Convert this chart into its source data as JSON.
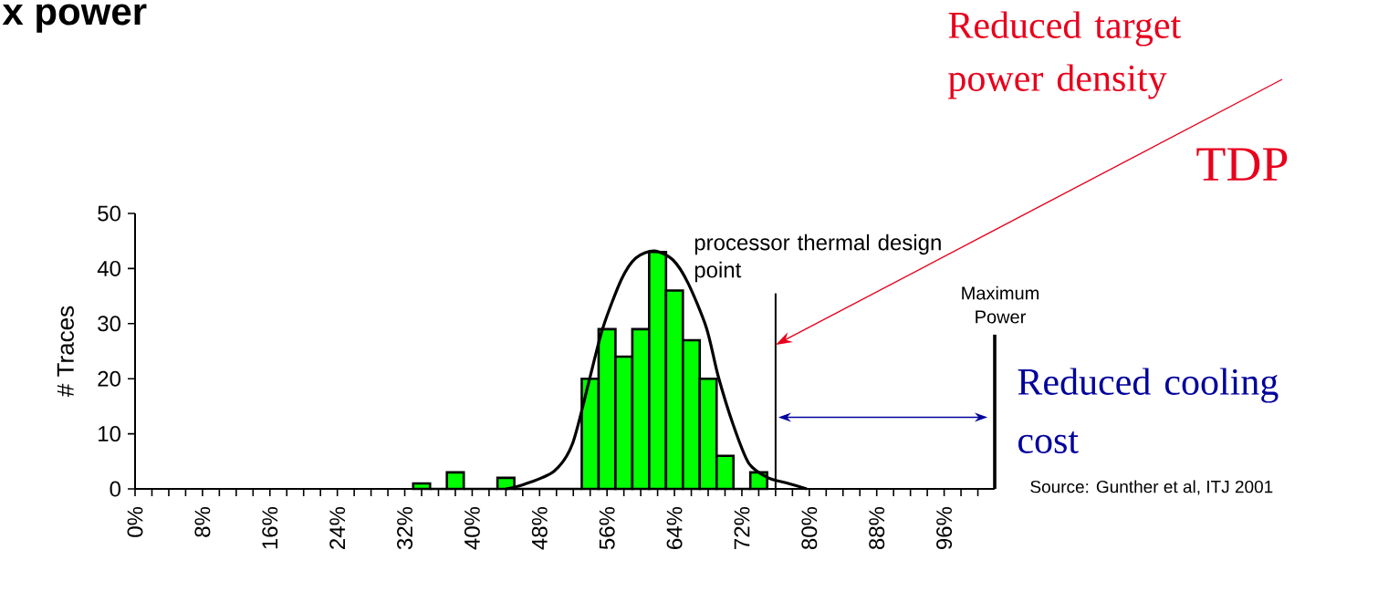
{
  "chart_data": {
    "type": "histogram",
    "title": "x power",
    "ylabel": "# Traces",
    "bins": [
      33,
      35,
      37,
      39,
      41,
      43,
      45,
      47,
      49,
      51,
      53,
      55,
      57,
      59,
      61,
      63,
      65,
      67,
      69,
      71,
      73,
      75
    ],
    "series": [
      {
        "type": "histogram",
        "color": "#00ff00",
        "values": [
          1,
          0,
          3,
          0,
          0,
          2,
          0,
          0,
          0,
          0,
          20,
          29,
          24,
          29,
          43,
          36,
          27,
          20,
          6,
          0,
          3
        ]
      },
      {
        "type": "line",
        "color": "#000000",
        "x": [
          44,
          46.1,
          49.7,
          51.9,
          54,
          55.5,
          57.7,
          59.4,
          61.6,
          63.8,
          65.6,
          67.8,
          69.2,
          71,
          72.8,
          75,
          77.5,
          79.7
        ],
        "values": [
          0,
          0.8,
          3.2,
          8.2,
          20.4,
          29.2,
          38,
          41.9,
          43.2,
          41.6,
          37.4,
          29.2,
          20.4,
          11.5,
          4.7,
          2.1,
          1,
          0
        ]
      }
    ],
    "xlim": [
      0,
      102
    ],
    "ylim": [
      0,
      50
    ],
    "yticks": [
      0,
      10,
      20,
      30,
      40,
      50
    ],
    "xticks": [
      {
        "value": 0,
        "label": "0%"
      },
      {
        "value": 2,
        "label": null
      },
      {
        "value": 4,
        "label": null
      },
      {
        "value": 6,
        "label": null
      },
      {
        "value": 8,
        "label": "8%"
      },
      {
        "value": 10,
        "label": null
      },
      {
        "value": 12,
        "label": null
      },
      {
        "value": 14,
        "label": null
      },
      {
        "value": 16,
        "label": "16%"
      },
      {
        "value": 18,
        "label": null
      },
      {
        "value": 20,
        "label": null
      },
      {
        "value": 22,
        "label": null
      },
      {
        "value": 24,
        "label": "24%"
      },
      {
        "value": 26,
        "label": null
      },
      {
        "value": 28,
        "label": null
      },
      {
        "value": 30,
        "label": null
      },
      {
        "value": 32,
        "label": "32%"
      },
      {
        "value": 34,
        "label": null
      },
      {
        "value": 36,
        "label": null
      },
      {
        "value": 38,
        "label": null
      },
      {
        "value": 40,
        "label": "40%"
      },
      {
        "value": 42,
        "label": null
      },
      {
        "value": 44,
        "label": null
      },
      {
        "value": 46,
        "label": null
      },
      {
        "value": 48,
        "label": "48%"
      },
      {
        "value": 50,
        "label": null
      },
      {
        "value": 52,
        "label": null
      },
      {
        "value": 54,
        "label": null
      },
      {
        "value": 56,
        "label": "56%"
      },
      {
        "value": 58,
        "label": null
      },
      {
        "value": 60,
        "label": null
      },
      {
        "value": 62,
        "label": null
      },
      {
        "value": 64,
        "label": "64%"
      },
      {
        "value": 66,
        "label": null
      },
      {
        "value": 68,
        "label": null
      },
      {
        "value": 70,
        "label": null
      },
      {
        "value": 72,
        "label": "72%"
      },
      {
        "value": 74,
        "label": null
      },
      {
        "value": 76,
        "label": null
      },
      {
        "value": 78,
        "label": null
      },
      {
        "value": 80,
        "label": "80%"
      },
      {
        "value": 82,
        "label": null
      },
      {
        "value": 84,
        "label": null
      },
      {
        "value": 86,
        "label": null
      },
      {
        "value": 88,
        "label": "88%"
      },
      {
        "value": 90,
        "label": null
      },
      {
        "value": 92,
        "label": null
      },
      {
        "value": 94,
        "label": null
      },
      {
        "value": 96,
        "label": "96%"
      },
      {
        "value": 98,
        "label": null
      },
      {
        "value": 100,
        "label": null
      }
    ],
    "ref_lines": [
      {
        "axis": "x",
        "value": 76,
        "label": "processor thermal design point",
        "color": "#000000"
      },
      {
        "axis": "x",
        "value": 102,
        "label": "Maximum Power",
        "color": "#000000"
      }
    ],
    "annotations": [
      "Reduced target power density",
      "TDP",
      {
        "text": "Reduced cooling cost",
        "x": 102,
        "y": 13
      },
      "Source: Gunther et al, ITJ 2001"
    ]
  }
}
